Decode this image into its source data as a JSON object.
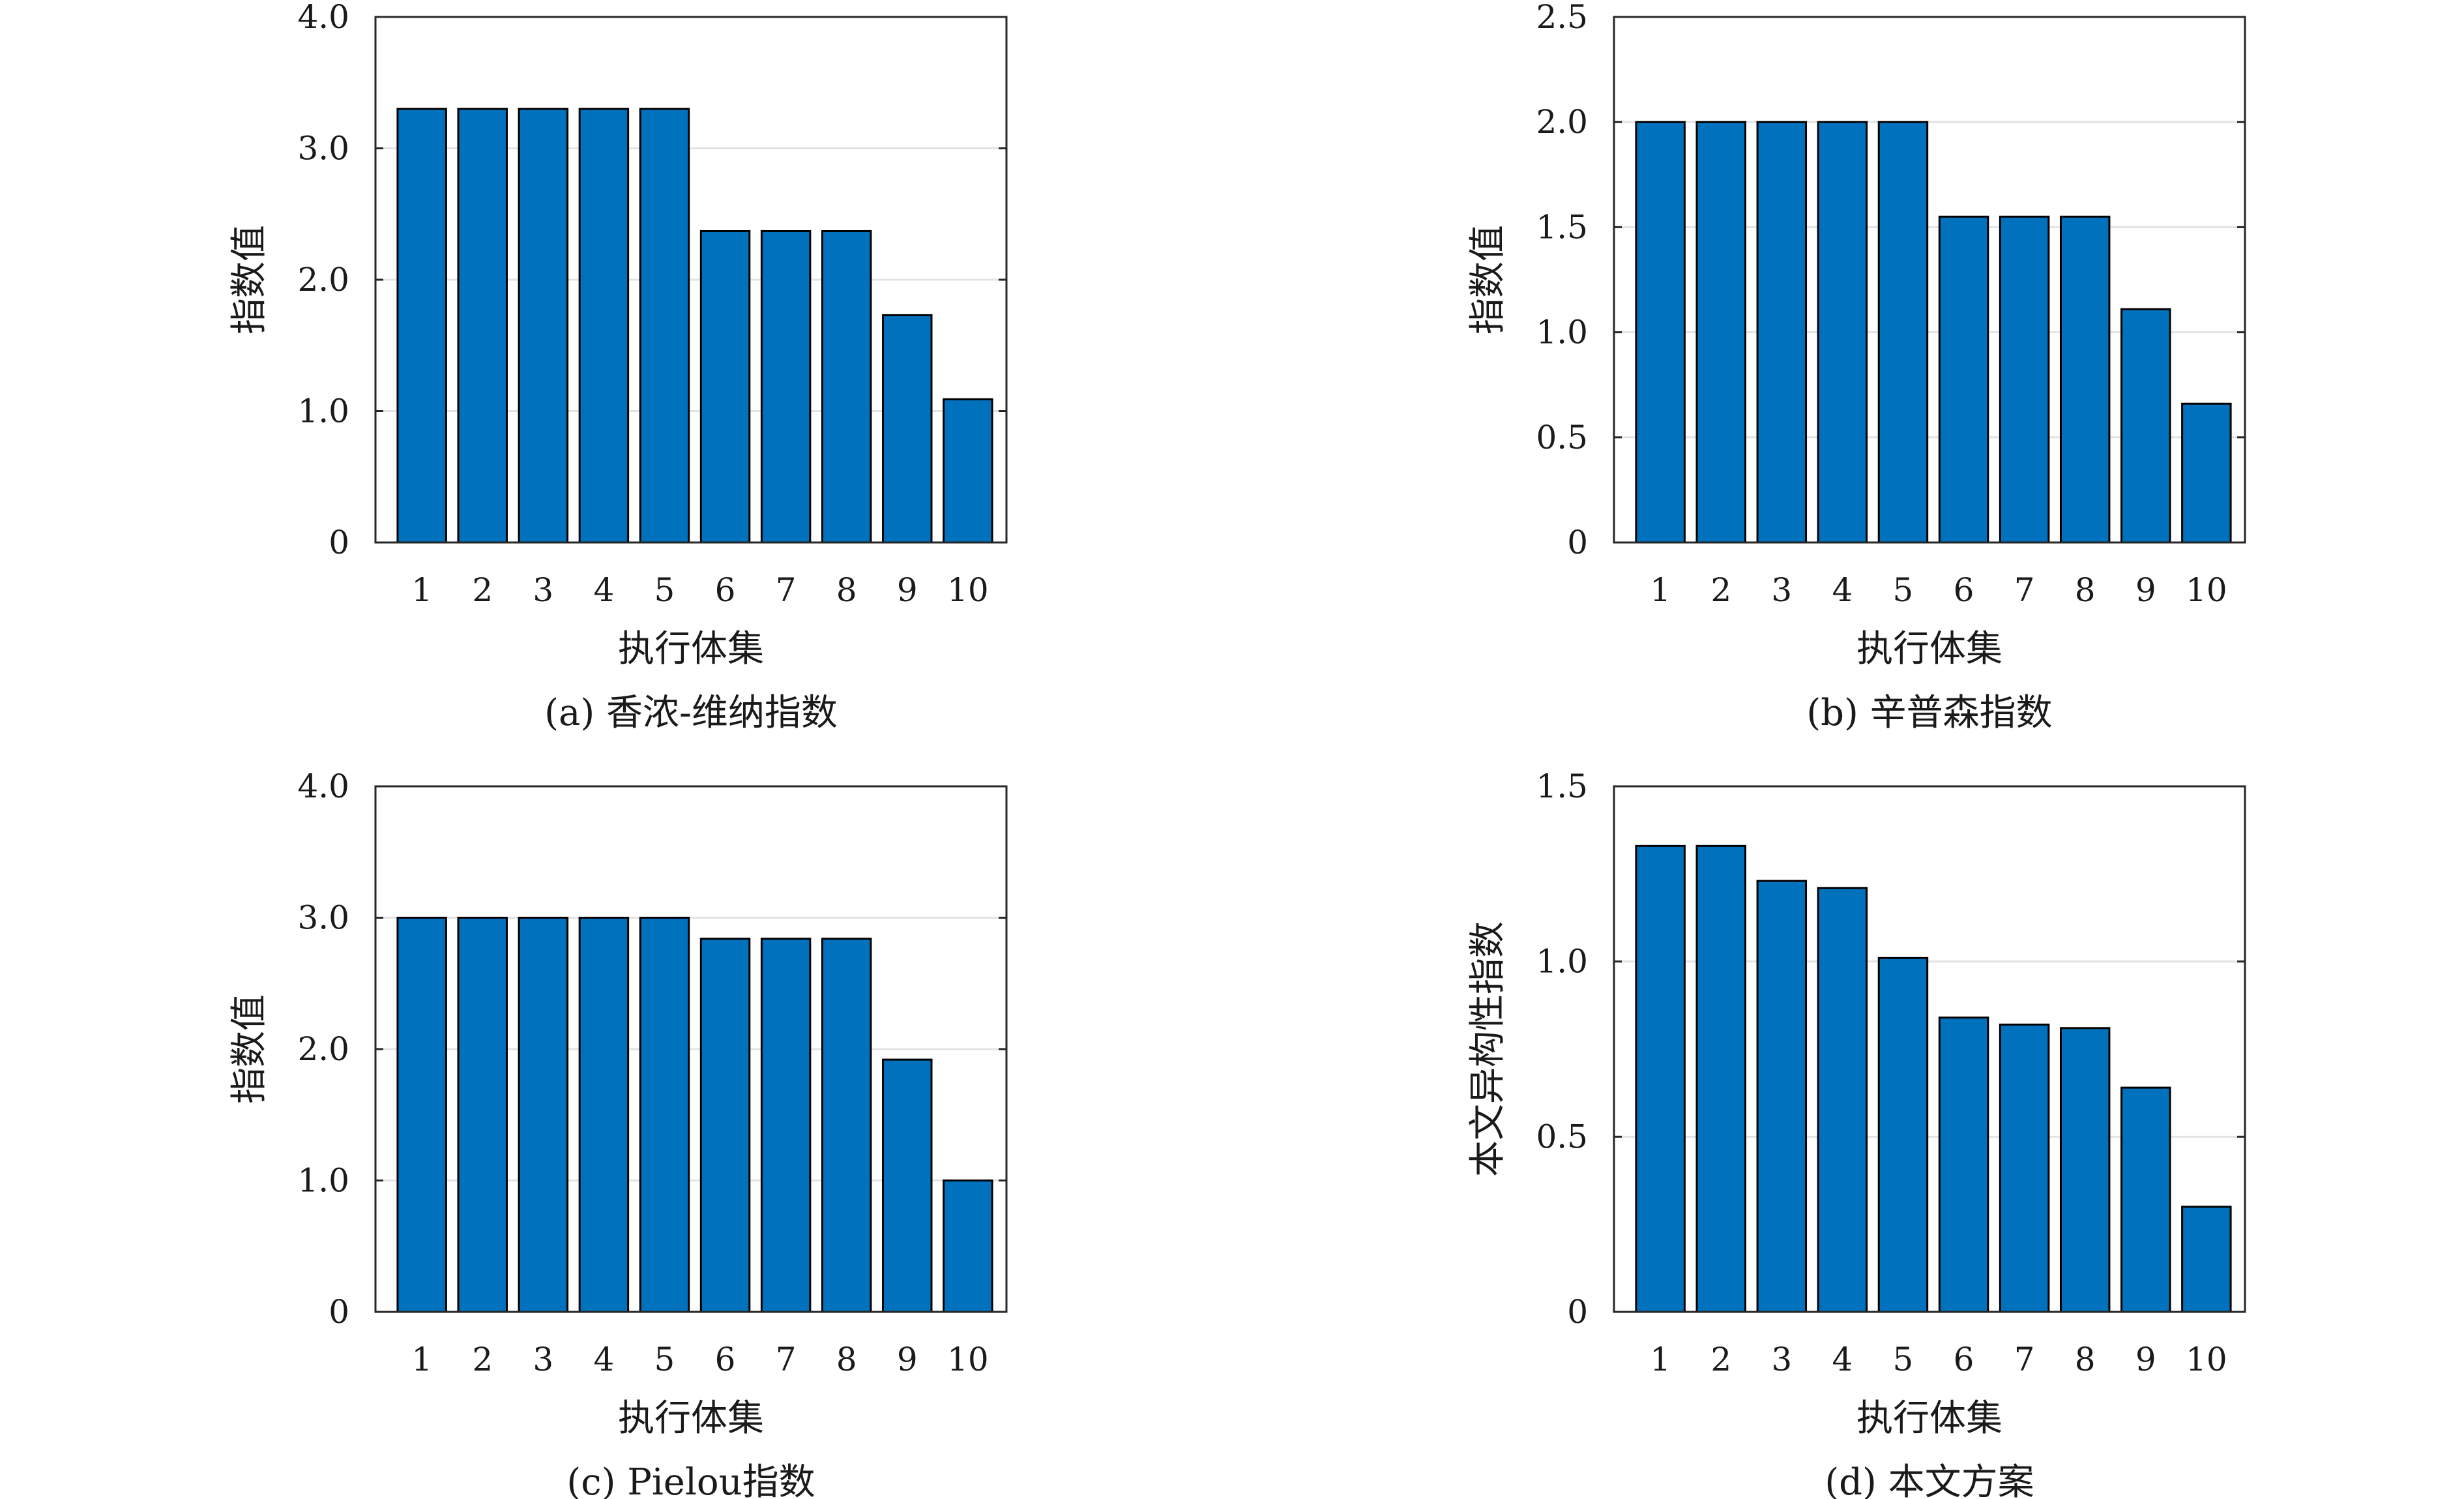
{
  "chart_data": [
    {
      "type": "bar",
      "caption": "(a) 香浓-维纳指数",
      "xlabel": "执行体集",
      "ylabel": "指数值",
      "categories": [
        "1",
        "2",
        "3",
        "4",
        "5",
        "6",
        "7",
        "8",
        "9",
        "10"
      ],
      "values": [
        3.3,
        3.3,
        3.3,
        3.3,
        3.3,
        2.37,
        2.37,
        2.37,
        1.73,
        1.09
      ],
      "ylim": [
        0,
        4.0
      ],
      "yticks": [
        0,
        1.0,
        2.0,
        3.0,
        4.0
      ],
      "ytick_labels": [
        "0",
        "1.0",
        "2.0",
        "3.0",
        "4.0"
      ],
      "grid": true,
      "bar_color": "#0072bd"
    },
    {
      "type": "bar",
      "caption": "(b) 辛普森指数",
      "xlabel": "执行体集",
      "ylabel": "指数值",
      "categories": [
        "1",
        "2",
        "3",
        "4",
        "5",
        "6",
        "7",
        "8",
        "9",
        "10"
      ],
      "values": [
        2.0,
        2.0,
        2.0,
        2.0,
        2.0,
        1.55,
        1.55,
        1.55,
        1.11,
        0.66
      ],
      "ylim": [
        0,
        2.5
      ],
      "yticks": [
        0,
        0.5,
        1.0,
        1.5,
        2.0,
        2.5
      ],
      "ytick_labels": [
        "0",
        "0.5",
        "1.0",
        "1.5",
        "2.0",
        "2.5"
      ],
      "grid": true,
      "bar_color": "#0072bd"
    },
    {
      "type": "bar",
      "caption": "(c) Pielou指数",
      "xlabel": "执行体集",
      "ylabel": "指数值",
      "categories": [
        "1",
        "2",
        "3",
        "4",
        "5",
        "6",
        "7",
        "8",
        "9",
        "10"
      ],
      "values": [
        3.0,
        3.0,
        3.0,
        3.0,
        3.0,
        2.84,
        2.84,
        2.84,
        1.92,
        1.0
      ],
      "ylim": [
        0,
        4.0
      ],
      "yticks": [
        0,
        1.0,
        2.0,
        3.0,
        4.0
      ],
      "ytick_labels": [
        "0",
        "1.0",
        "2.0",
        "3.0",
        "4.0"
      ],
      "grid": true,
      "bar_color": "#0072bd"
    },
    {
      "type": "bar",
      "caption": "(d) 本文方案",
      "xlabel": "执行体集",
      "ylabel": "本文异构性指数",
      "categories": [
        "1",
        "2",
        "3",
        "4",
        "5",
        "6",
        "7",
        "8",
        "9",
        "10"
      ],
      "values": [
        1.33,
        1.33,
        1.23,
        1.21,
        1.01,
        0.84,
        0.82,
        0.81,
        0.64,
        0.3
      ],
      "ylim": [
        0,
        1.5
      ],
      "yticks": [
        0,
        0.5,
        1.0,
        1.5
      ],
      "ytick_labels": [
        "0",
        "0.5",
        "1.0",
        "1.5"
      ],
      "grid": true,
      "bar_color": "#0072bd"
    }
  ]
}
